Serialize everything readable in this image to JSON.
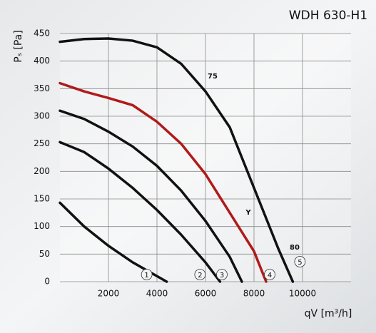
{
  "chart_data": {
    "type": "line",
    "title": "WDH 630-H1",
    "x_label": "qV [m³/h]",
    "y_label": "Pₛ [Pa]",
    "xlim": [
      0,
      12000
    ],
    "xticks": [
      2000,
      4000,
      6000,
      8000,
      10000
    ],
    "ylim": [
      0,
      450
    ],
    "yticks": [
      0,
      50,
      100,
      150,
      200,
      250,
      300,
      350,
      400,
      450
    ],
    "grid": true,
    "annotations": [
      "75",
      "Y",
      "80"
    ],
    "series": [
      {
        "name": "1",
        "color": "#111111",
        "x": [
          0,
          1000,
          2000,
          3000,
          4000,
          4400
        ],
        "values": [
          143,
          100,
          65,
          35,
          10,
          0
        ]
      },
      {
        "name": "2",
        "color": "#111111",
        "x": [
          0,
          1000,
          2000,
          3000,
          4000,
          5000,
          6000,
          6600
        ],
        "values": [
          253,
          235,
          205,
          170,
          130,
          85,
          35,
          0
        ]
      },
      {
        "name": "3",
        "color": "#111111",
        "x": [
          0,
          1000,
          2000,
          3000,
          4000,
          5000,
          6000,
          7000,
          7500
        ],
        "values": [
          310,
          295,
          272,
          245,
          210,
          165,
          110,
          45,
          0
        ]
      },
      {
        "name": "4",
        "color": "#b01a1a",
        "x": [
          0,
          1000,
          2000,
          3000,
          4000,
          5000,
          6000,
          7000,
          8000,
          8500
        ],
        "values": [
          360,
          345,
          333,
          320,
          290,
          250,
          195,
          125,
          55,
          0
        ]
      },
      {
        "name": "5",
        "color": "#111111",
        "x": [
          0,
          1000,
          2000,
          3000,
          4000,
          5000,
          6000,
          7000,
          8000,
          9000,
          9600
        ],
        "values": [
          435,
          440,
          441,
          437,
          425,
          395,
          345,
          280,
          170,
          60,
          0
        ]
      }
    ]
  }
}
